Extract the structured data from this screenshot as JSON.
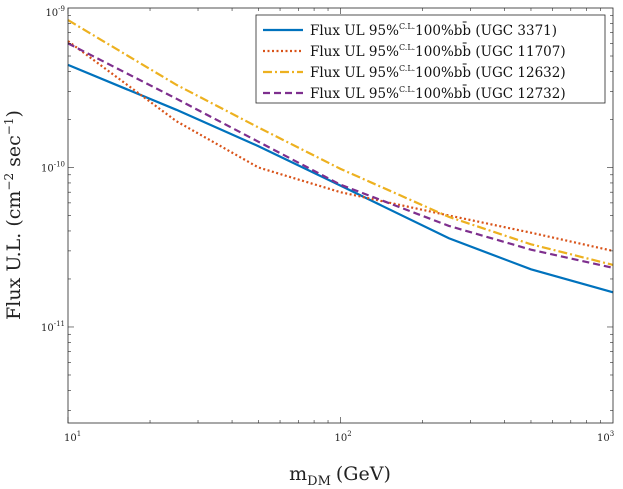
{
  "chart_data": {
    "type": "line",
    "title": "",
    "xlabel": {
      "main": "m",
      "sub": "DM",
      "unit": "(GeV)"
    },
    "ylabel": {
      "text": "Flux U.L. (cm",
      "exp1": "−2",
      "mid": " sec",
      "exp2": "−1",
      "end": ")"
    },
    "x_scale": "log",
    "y_scale": "log",
    "xlim": [
      10,
      1000
    ],
    "ylim": [
      2.5e-12,
      1e-09
    ],
    "x_ticks": [
      {
        "value": 10,
        "base": "10",
        "exp": "1"
      },
      {
        "value": 100,
        "base": "10",
        "exp": "2"
      },
      {
        "value": 1000,
        "base": "10",
        "exp": "3"
      }
    ],
    "y_ticks": [
      {
        "value": 1e-11,
        "base": "10",
        "exp": "-11"
      },
      {
        "value": 1e-10,
        "base": "10",
        "exp": "-10"
      },
      {
        "value": 1e-09,
        "base": "10",
        "exp": "-9"
      }
    ],
    "legend_position": "top-right",
    "series": [
      {
        "name": "Flux UL 95%C.L.100%bb̄ (UGC 3371)",
        "label_main": "Flux UL 95%",
        "label_sup": "C.L.",
        "label_rest": "100%bb̄ (UGC 3371)",
        "color": "#0072bd",
        "style": "solid",
        "x": [
          10,
          25,
          50,
          100,
          250,
          500,
          1000
        ],
        "y": [
          4.4e-10,
          2.3e-10,
          1.36e-10,
          7.7e-11,
          3.6e-11,
          2.3e-11,
          1.65e-11
        ]
      },
      {
        "name": "Flux UL 95%C.L.100%bb̄ (UGC 11707)",
        "label_main": "Flux UL 95%",
        "label_sup": "C.L.",
        "label_rest": "100%bb̄ (UGC 11707)",
        "color": "#d95319",
        "style": "dotted",
        "x": [
          10,
          25,
          50,
          100,
          250,
          500,
          1000
        ],
        "y": [
          6.2e-10,
          1.95e-10,
          1e-10,
          7e-11,
          5e-11,
          3.9e-11,
          3e-11
        ]
      },
      {
        "name": "Flux UL 95%C.L.100%bb̄ (UGC 12632)",
        "label_main": "Flux UL 95%",
        "label_sup": "C.L.",
        "label_rest": "100%bb̄ (UGC 12632)",
        "color": "#edb120",
        "style": "dashdot",
        "x": [
          10,
          25,
          50,
          100,
          250,
          500,
          1000
        ],
        "y": [
          8.4e-10,
          3.3e-10,
          1.78e-10,
          9.8e-11,
          4.9e-11,
          3.3e-11,
          2.45e-11
        ]
      },
      {
        "name": "Flux UL 95%C.L.100%bb̄ (UGC 12732)",
        "label_main": "Flux UL 95%",
        "label_sup": "C.L.",
        "label_rest": "100%bb̄ (UGC 12732)",
        "color": "#7e2f8e",
        "style": "dashed",
        "x": [
          10,
          25,
          50,
          100,
          250,
          500,
          1000
        ],
        "y": [
          6e-10,
          2.7e-10,
          1.45e-10,
          7.8e-11,
          4.3e-11,
          3.05e-11,
          2.35e-11
        ]
      }
    ]
  }
}
